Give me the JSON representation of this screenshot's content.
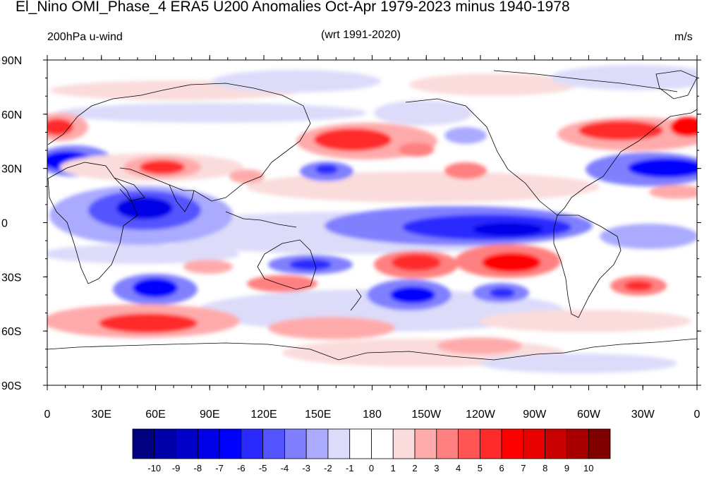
{
  "title": "El_Nino OMI_Phase_4 ERA5 U200 Anomalies Oct-Apr 1979-2023 minus 1940-1978",
  "left_label": "200hPa u-wind",
  "center_label": "(wrt 1991-2020)",
  "right_label": "m/s",
  "lat_ticks": [
    "90N",
    "60N",
    "30N",
    "0",
    "30S",
    "60S",
    "90S"
  ],
  "lon_ticks": [
    "0",
    "30E",
    "60E",
    "90E",
    "120E",
    "150E",
    "180",
    "150W",
    "120W",
    "90W",
    "60W",
    "30W",
    "0"
  ],
  "colorbar": {
    "labels": [
      "-10",
      "-9",
      "-8",
      "-7",
      "-6",
      "-5",
      "-4",
      "-3",
      "-2",
      "-1",
      "0",
      "1",
      "2",
      "3",
      "4",
      "5",
      "6",
      "7",
      "8",
      "9",
      "10"
    ],
    "colors": [
      "#000080",
      "#0000a8",
      "#0000c8",
      "#0000e6",
      "#0000ff",
      "#2a2aff",
      "#5555ff",
      "#8080ff",
      "#aaaaff",
      "#dcdcfa",
      "#ffffff",
      "#ffffff",
      "#fadcdc",
      "#ffaaaa",
      "#ff8080",
      "#ff5555",
      "#ff2a2a",
      "#ff0000",
      "#e60000",
      "#c80000",
      "#a80000",
      "#800000"
    ]
  }
}
